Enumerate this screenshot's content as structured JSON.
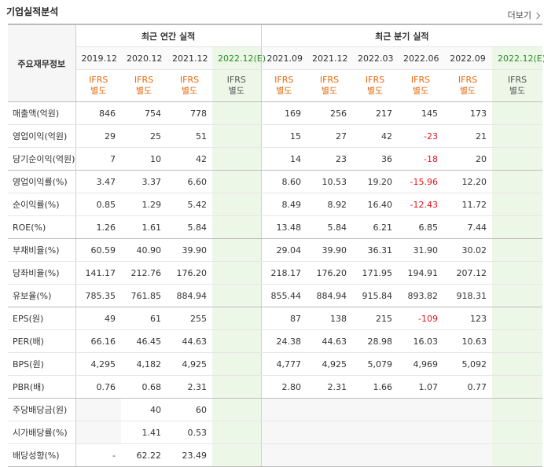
{
  "title": "기업실적분석",
  "more_label": "더보기",
  "header": {
    "main_label": "주요재무정보",
    "annual_label": "최근 연간 실적",
    "quarter_label": "최근 분기 실적",
    "annual_periods": [
      "2019.12",
      "2020.12",
      "2021.12",
      "2022.12(E)"
    ],
    "quarter_periods": [
      "2021.09",
      "2021.12",
      "2022.03",
      "2022.06",
      "2022.09",
      "2022.12(E)"
    ],
    "ifrs_line1": "IFRS",
    "ifrs_line2": "별도"
  },
  "rows": [
    {
      "label": "매출액(억원)",
      "values": [
        "846",
        "754",
        "778",
        "",
        "169",
        "256",
        "217",
        "145",
        "173",
        ""
      ]
    },
    {
      "label": "영업이익(억원)",
      "values": [
        "29",
        "25",
        "51",
        "",
        "15",
        "27",
        "42",
        "-23",
        "21",
        ""
      ]
    },
    {
      "label": "당기순이익(억원)",
      "values": [
        "7",
        "10",
        "42",
        "",
        "14",
        "23",
        "36",
        "-18",
        "20",
        ""
      ]
    },
    {
      "label": "영업이익률(%)",
      "values": [
        "3.47",
        "3.37",
        "6.60",
        "",
        "8.60",
        "10.53",
        "19.20",
        "-15.96",
        "12.20",
        ""
      ]
    },
    {
      "label": "순이익률(%)",
      "values": [
        "0.85",
        "1.29",
        "5.42",
        "",
        "8.49",
        "8.92",
        "16.40",
        "-12.43",
        "11.72",
        ""
      ]
    },
    {
      "label": "ROE(%)",
      "values": [
        "1.26",
        "1.61",
        "5.84",
        "",
        "13.48",
        "5.84",
        "6.21",
        "6.85",
        "7.44",
        ""
      ]
    },
    {
      "label": "부채비율(%)",
      "values": [
        "60.59",
        "40.90",
        "39.90",
        "",
        "29.04",
        "39.90",
        "36.31",
        "31.90",
        "30.02",
        ""
      ]
    },
    {
      "label": "당좌비율(%)",
      "values": [
        "141.17",
        "212.76",
        "176.20",
        "",
        "218.17",
        "176.20",
        "171.95",
        "194.91",
        "207.12",
        ""
      ]
    },
    {
      "label": "유보율(%)",
      "values": [
        "785.35",
        "761.85",
        "884.94",
        "",
        "855.44",
        "884.94",
        "915.84",
        "893.82",
        "918.31",
        ""
      ]
    },
    {
      "label": "EPS(원)",
      "values": [
        "49",
        "61",
        "255",
        "",
        "87",
        "138",
        "215",
        "-109",
        "123",
        ""
      ]
    },
    {
      "label": "PER(배)",
      "values": [
        "66.16",
        "46.45",
        "44.63",
        "",
        "24.38",
        "44.63",
        "28.98",
        "16.03",
        "10.63",
        ""
      ]
    },
    {
      "label": "BPS(원)",
      "values": [
        "4,295",
        "4,182",
        "4,925",
        "",
        "4,777",
        "4,925",
        "5,079",
        "4,969",
        "5,092",
        ""
      ]
    },
    {
      "label": "PBR(배)",
      "values": [
        "0.76",
        "0.68",
        "2.31",
        "",
        "2.80",
        "2.31",
        "1.66",
        "1.07",
        "0.77",
        ""
      ]
    },
    {
      "label": "주당배당금(원)",
      "values": [
        "",
        "40",
        "60",
        "",
        "",
        "",
        "",
        "",
        "",
        ""
      ]
    },
    {
      "label": "시가배당률(%)",
      "values": [
        "",
        "1.41",
        "0.53",
        "",
        "",
        "",
        "",
        "",
        "",
        ""
      ]
    },
    {
      "label": "배당성향(%)",
      "values": [
        "-",
        "62.22",
        "23.49",
        "",
        "",
        "",
        "",
        "",
        "",
        ""
      ]
    }
  ],
  "colors": {
    "negative": "#e5141f",
    "ifrs": "#e8680a",
    "estimate_bg": "#edf7e8"
  }
}
